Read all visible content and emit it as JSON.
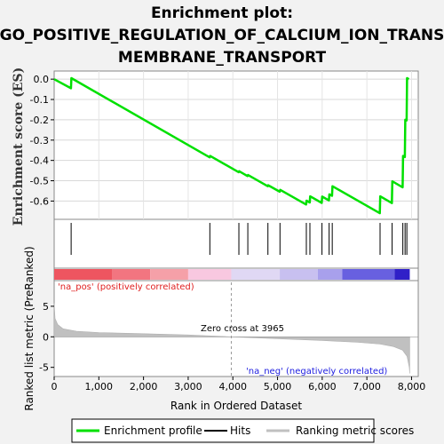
{
  "chart_data": {
    "type": "line",
    "title_lines": [
      "Enrichment plot:",
      "GO_POSITIVE_REGULATION_OF_CALCIUM_ION_TRANS",
      "MEMBRANE_TRANSPORT"
    ],
    "es_panel": {
      "ylabel": "Enrichment score (ES)",
      "ylim": [
        -0.69,
        0.04
      ],
      "yticks": [
        0.0,
        -0.1,
        -0.2,
        -0.3,
        -0.4,
        -0.5,
        -0.6
      ],
      "ytick_labels": [
        "0.0",
        "-0.1",
        "-0.2",
        "-0.3",
        "-0.4",
        "-0.5",
        "-0.6"
      ],
      "grid": true,
      "line_color": "#00e000",
      "profile": [
        {
          "x": 0,
          "y": 0.0
        },
        {
          "x": 375,
          "y": -0.045
        },
        {
          "x": 385,
          "y": 0.005
        },
        {
          "x": 3480,
          "y": -0.385
        },
        {
          "x": 3490,
          "y": -0.378
        },
        {
          "x": 4130,
          "y": -0.458
        },
        {
          "x": 4140,
          "y": -0.453
        },
        {
          "x": 4330,
          "y": -0.477
        },
        {
          "x": 4340,
          "y": -0.472
        },
        {
          "x": 4780,
          "y": -0.527
        },
        {
          "x": 4790,
          "y": -0.522
        },
        {
          "x": 5050,
          "y": -0.554
        },
        {
          "x": 5060,
          "y": -0.545
        },
        {
          "x": 5640,
          "y": -0.617
        },
        {
          "x": 5650,
          "y": -0.598
        },
        {
          "x": 5720,
          "y": -0.607
        },
        {
          "x": 5730,
          "y": -0.577
        },
        {
          "x": 5990,
          "y": -0.609
        },
        {
          "x": 6000,
          "y": -0.578
        },
        {
          "x": 6150,
          "y": -0.597
        },
        {
          "x": 6160,
          "y": -0.567
        },
        {
          "x": 6220,
          "y": -0.574
        },
        {
          "x": 6230,
          "y": -0.527
        },
        {
          "x": 7290,
          "y": -0.66
        },
        {
          "x": 7300,
          "y": -0.577
        },
        {
          "x": 7560,
          "y": -0.61
        },
        {
          "x": 7570,
          "y": -0.503
        },
        {
          "x": 7800,
          "y": -0.532
        },
        {
          "x": 7810,
          "y": -0.378
        },
        {
          "x": 7850,
          "y": -0.383
        },
        {
          "x": 7860,
          "y": -0.2
        },
        {
          "x": 7890,
          "y": -0.203
        },
        {
          "x": 7900,
          "y": 0.005
        },
        {
          "x": 7940,
          "y": 0.0
        }
      ]
    },
    "hits_panel": {
      "hit_ranks": [
        380,
        3485,
        4135,
        4335,
        4785,
        5055,
        5645,
        5725,
        5995,
        6155,
        6225,
        7295,
        7565,
        7805,
        7855,
        7895
      ]
    },
    "metric_panel": {
      "ylabel": "Ranked list metric (PreRanked)",
      "ylim": [
        -6.5,
        9.2
      ],
      "yticks": [
        5,
        0,
        -5
      ],
      "ytick_labels": [
        "5",
        "0",
        "-5"
      ],
      "zero_cross_label": "Zero cross at 3965",
      "zero_cross": 3965,
      "pos_label": "'na_pos' (positively correlated)",
      "neg_label": "'na_neg' (negatively correlated)",
      "metric_curve": [
        {
          "x": 0,
          "y": 5.5
        },
        {
          "x": 20,
          "y": 3.0
        },
        {
          "x": 80,
          "y": 2.0
        },
        {
          "x": 200,
          "y": 1.3
        },
        {
          "x": 500,
          "y": 0.9
        },
        {
          "x": 1000,
          "y": 0.7
        },
        {
          "x": 2000,
          "y": 0.5
        },
        {
          "x": 3000,
          "y": 0.3
        },
        {
          "x": 3965,
          "y": 0.0
        },
        {
          "x": 5000,
          "y": -0.3
        },
        {
          "x": 6000,
          "y": -0.6
        },
        {
          "x": 6800,
          "y": -0.9
        },
        {
          "x": 7300,
          "y": -1.2
        },
        {
          "x": 7600,
          "y": -1.6
        },
        {
          "x": 7800,
          "y": -2.2
        },
        {
          "x": 7900,
          "y": -3.2
        },
        {
          "x": 7950,
          "y": -5.0
        },
        {
          "x": 7960,
          "y": -6.0
        }
      ]
    },
    "color_bar": [
      {
        "from": 0,
        "to": 1300,
        "color": "#ee5560"
      },
      {
        "from": 1300,
        "to": 2150,
        "color": "#f27580"
      },
      {
        "from": 2150,
        "to": 3000,
        "color": "#f5a0a8"
      },
      {
        "from": 3000,
        "to": 3965,
        "color": "#f8c8e0"
      },
      {
        "from": 3965,
        "to": 5050,
        "color": "#e0d8f4"
      },
      {
        "from": 5050,
        "to": 5900,
        "color": "#c8c0f0"
      },
      {
        "from": 5900,
        "to": 6450,
        "color": "#a8a0ec"
      },
      {
        "from": 6450,
        "to": 7620,
        "color": "#6860e0"
      },
      {
        "from": 7620,
        "to": 7960,
        "color": "#3020c8"
      }
    ],
    "x_axis": {
      "xlabel": "Rank in Ordered Dataset",
      "xlim": [
        0,
        8150
      ],
      "xticks": [
        0,
        1000,
        2000,
        3000,
        4000,
        5000,
        6000,
        7000,
        8000
      ],
      "xtick_labels": [
        "0",
        "1,000",
        "2,000",
        "3,000",
        "4,000",
        "5,000",
        "6,000",
        "7,000",
        "8,000"
      ]
    },
    "legend": {
      "placement": "bottom",
      "entries": [
        {
          "label": "Enrichment profile",
          "color": "#00e000"
        },
        {
          "label": "Hits",
          "color": "#000000"
        },
        {
          "label": "Ranking metric scores",
          "color": "#c0c0c0"
        }
      ]
    }
  }
}
